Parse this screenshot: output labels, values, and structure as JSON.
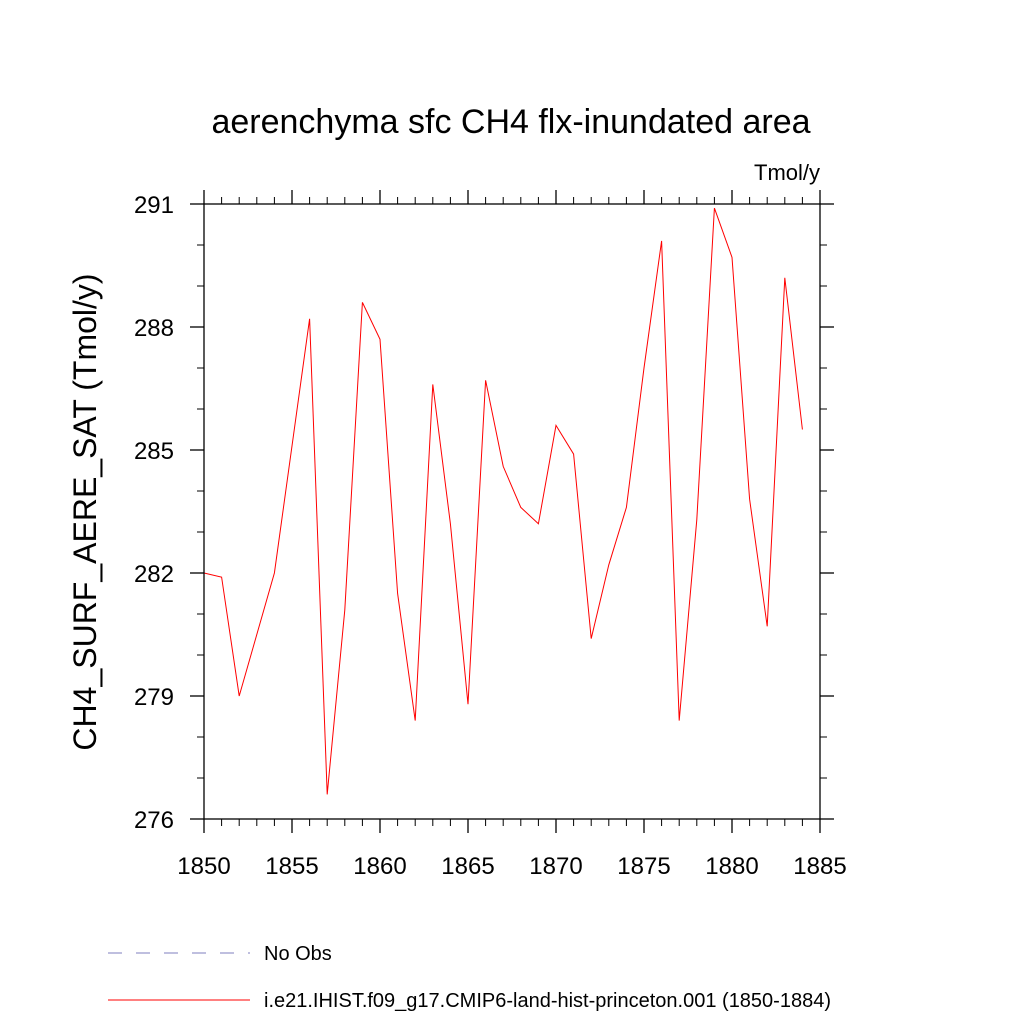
{
  "chart_data": {
    "type": "line",
    "title": "aerenchyma sfc CH4 flx-inundated area",
    "units": "Tmol/y",
    "xlabel": "",
    "ylabel": "CH4_SURF_AERE_SAT  (Tmol/y)",
    "xlim": [
      1850,
      1885
    ],
    "ylim": [
      276,
      291
    ],
    "xticks": [
      1850,
      1855,
      1860,
      1865,
      1870,
      1875,
      1880,
      1885
    ],
    "yticks": [
      276,
      279,
      282,
      285,
      288,
      291
    ],
    "grid": false,
    "legend_position": "bottom-left",
    "series": [
      {
        "name": "i.e21.IHIST.f09_g17.CMIP6-land-hist-princeton.001 (1850-1884)",
        "color": "#ff0000",
        "style": "solid",
        "x": [
          1850,
          1851,
          1852,
          1853,
          1854,
          1855,
          1856,
          1857,
          1858,
          1859,
          1860,
          1861,
          1862,
          1863,
          1864,
          1865,
          1866,
          1867,
          1868,
          1869,
          1870,
          1871,
          1872,
          1873,
          1874,
          1875,
          1876,
          1877,
          1878,
          1879,
          1880,
          1881,
          1882,
          1883,
          1884
        ],
        "values": [
          282.0,
          281.9,
          279.0,
          280.5,
          282.0,
          285.1,
          288.2,
          276.6,
          281.1,
          288.6,
          287.7,
          281.5,
          278.4,
          286.6,
          283.2,
          278.8,
          286.7,
          284.6,
          283.6,
          283.2,
          285.6,
          284.9,
          280.4,
          282.2,
          283.6,
          287.0,
          290.1,
          278.4,
          283.3,
          290.9,
          289.7,
          283.8,
          280.7,
          289.2,
          285.5
        ]
      },
      {
        "name": "No Obs",
        "color": "#7f7fbf",
        "style": "dashed",
        "x": [],
        "values": []
      }
    ]
  }
}
